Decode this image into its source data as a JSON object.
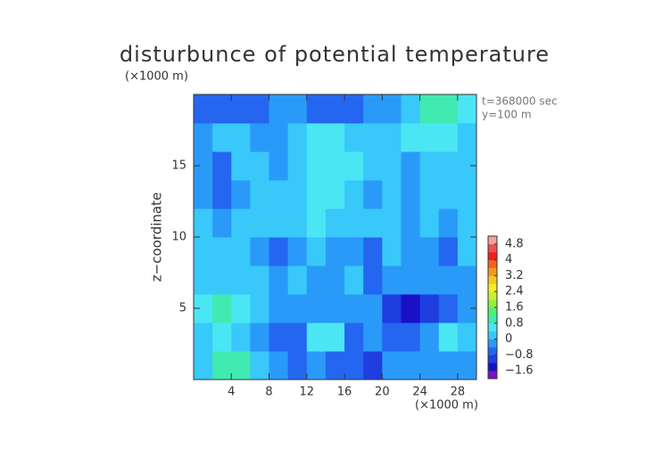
{
  "chart_data": {
    "type": "heatmap",
    "title": "disturbunce of potential temperature",
    "ylabel": "z−coordinate",
    "yunit": "(×1000 m)",
    "xunit": "(×1000 m)",
    "annotations": [
      "t=368000 sec",
      "y=100 m"
    ],
    "x": [
      1,
      3,
      5,
      7,
      9,
      11,
      13,
      15,
      17,
      19,
      21,
      23,
      25,
      27,
      29
    ],
    "y": [
      1,
      3,
      5,
      7,
      9,
      11,
      13,
      15,
      17,
      19
    ],
    "z": [
      [
        0.2,
        0.8,
        0.8,
        0,
        -0.4,
        -0.6,
        -0.4,
        -0.6,
        -0.8,
        -1.0,
        -0.4,
        -0.4,
        -0.4,
        -0.2,
        -0.2
      ],
      [
        0,
        0.4,
        0.2,
        -0.4,
        -0.8,
        -0.8,
        0.6,
        0.4,
        -0.6,
        -0.4,
        -0.6,
        -0.8,
        -0.4,
        0.4,
        0
      ],
      [
        0.6,
        0.8,
        0.4,
        0,
        -0.4,
        -0.4,
        -0.2,
        -0.4,
        -0.2,
        -0.4,
        -1.0,
        -1.4,
        -1.0,
        -0.6,
        -0.2
      ],
      [
        0,
        0,
        0.2,
        0,
        -0.4,
        0,
        -0.2,
        -0.4,
        0,
        -0.6,
        -0.2,
        -0.4,
        -0.4,
        -0.4,
        -0.2
      ],
      [
        0,
        0,
        0.2,
        -0.2,
        -0.8,
        -0.2,
        0,
        -0.4,
        -0.2,
        -0.6,
        0,
        -0.4,
        -0.2,
        -0.8,
        0
      ],
      [
        0,
        -0.2,
        0.2,
        0.2,
        0,
        0.2,
        0.4,
        0.2,
        0.2,
        0,
        0.2,
        -0.2,
        0,
        -0.4,
        0
      ],
      [
        -0.4,
        -0.8,
        -0.2,
        0,
        0,
        0.2,
        0.4,
        0.4,
        0.2,
        -0.2,
        0.2,
        -0.4,
        0.2,
        0,
        0
      ],
      [
        -0.4,
        -0.8,
        0,
        0.2,
        -0.2,
        0.2,
        0.4,
        0.4,
        0.4,
        0,
        0.2,
        -0.2,
        0.2,
        0.2,
        0
      ],
      [
        -0.2,
        0,
        0.2,
        -0.2,
        -0.4,
        0.2,
        0.4,
        0.4,
        0.2,
        0,
        0.2,
        0.4,
        0.6,
        0.6,
        0.2
      ],
      [
        -0.8,
        -0.8,
        -0.8,
        -0.6,
        -0.4,
        -0.4,
        -0.6,
        -0.6,
        -0.6,
        -0.4,
        -0.2,
        0.2,
        0.8,
        1.0,
        0.6
      ]
    ],
    "xlim": [
      0,
      30
    ],
    "ylim": [
      0,
      20
    ],
    "xticks": [
      4,
      8,
      12,
      16,
      20,
      24,
      28
    ],
    "yticks": [
      5,
      10,
      15
    ],
    "colorbar": {
      "levels": [
        -2.0,
        -1.6,
        -1.2,
        -0.8,
        -0.4,
        0,
        0.4,
        0.8,
        1.2,
        1.6,
        2.0,
        2.4,
        2.8,
        3.2,
        3.6,
        4.0,
        4.4,
        4.8,
        5.2
      ],
      "colors": [
        "#7a10c8",
        "#1a10c8",
        "#1e3ee0",
        "#2466f0",
        "#2a9af8",
        "#38c8fa",
        "#4ae6f4",
        "#40eab0",
        "#50f070",
        "#8ef040",
        "#c8f030",
        "#f0f020",
        "#f8c820",
        "#f89820",
        "#f86020",
        "#f02020",
        "#f05050",
        "#f4a0a0"
      ],
      "ticks": [
        {
          "value": -1.6,
          "label": "−1.6"
        },
        {
          "value": -0.8,
          "label": "−0.8"
        },
        0,
        0.8,
        1.6,
        2.4,
        3.2,
        4,
        4.8
      ]
    }
  }
}
